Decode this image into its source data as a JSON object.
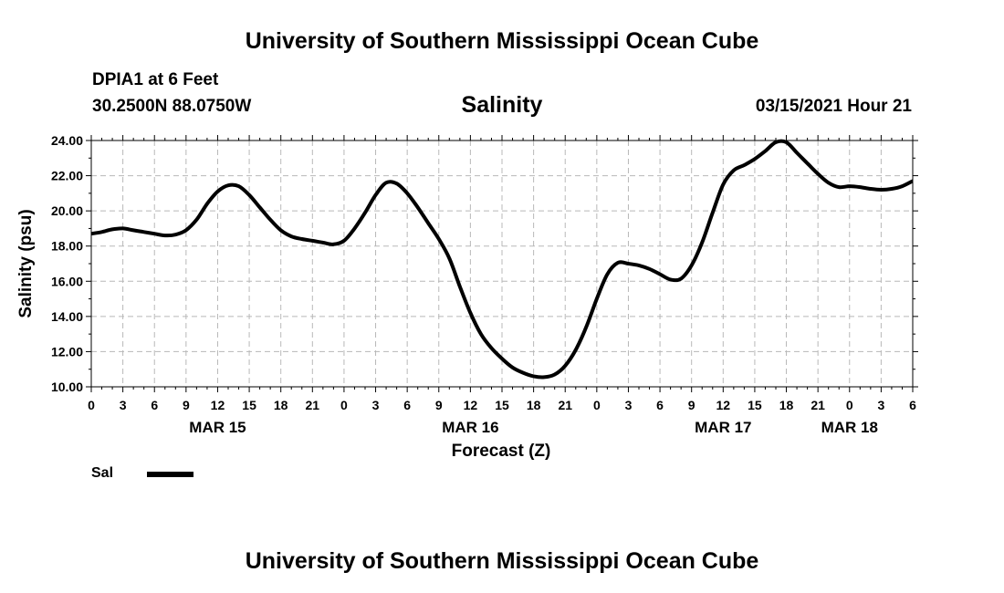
{
  "header": {
    "title": "University of Southern Mississippi Ocean Cube",
    "station": "DPIA1 at 6 Feet",
    "coordinates": "30.2500N 88.0750W",
    "timestamp": "03/15/2021 Hour 21"
  },
  "footer": {
    "title": "University of Southern Mississippi Ocean Cube"
  },
  "legend": {
    "label": "Sal"
  },
  "chart_data": {
    "type": "line",
    "title": "Salinity",
    "xlabel": "Forecast (Z)",
    "ylabel": "Salinity (psu)",
    "ylim": [
      10,
      24
    ],
    "yticks": [
      "10.00",
      "12.00",
      "14.00",
      "16.00",
      "18.00",
      "20.00",
      "22.00",
      "24.00"
    ],
    "xlim_hours": [
      0,
      78
    ],
    "xtick_labels": [
      "0",
      "3",
      "6",
      "9",
      "12",
      "15",
      "18",
      "21",
      "0",
      "3",
      "6",
      "9",
      "12",
      "15",
      "18",
      "21",
      "0",
      "3",
      "6",
      "9",
      "12",
      "15",
      "18",
      "21",
      "0",
      "3",
      "6"
    ],
    "date_labels": [
      {
        "label": "MAR 15",
        "hour": 12
      },
      {
        "label": "MAR 16",
        "hour": 36
      },
      {
        "label": "MAR 17",
        "hour": 60
      },
      {
        "label": "MAR 18",
        "hour": 72
      }
    ],
    "grid": true,
    "series": [
      {
        "name": "Sal",
        "color": "#000000",
        "x": [
          0,
          1,
          2,
          3,
          4,
          5,
          6,
          7,
          8,
          9,
          10,
          11,
          12,
          13,
          14,
          15,
          16,
          17,
          18,
          19,
          20,
          21,
          22,
          23,
          24,
          25,
          26,
          27,
          28,
          29,
          30,
          31,
          32,
          33,
          34,
          35,
          36,
          37,
          38,
          39,
          40,
          41,
          42,
          43,
          44,
          45,
          46,
          47,
          48,
          49,
          50,
          51,
          52,
          53,
          54,
          55,
          56,
          57,
          58,
          59,
          60,
          61,
          62,
          63,
          64,
          65,
          66,
          67,
          68,
          69,
          70,
          71,
          72,
          73,
          74,
          75,
          76,
          77,
          78
        ],
        "values": [
          18.7,
          18.8,
          18.95,
          19.0,
          18.9,
          18.8,
          18.7,
          18.6,
          18.65,
          18.9,
          19.5,
          20.4,
          21.1,
          21.45,
          21.4,
          20.9,
          20.2,
          19.5,
          18.9,
          18.55,
          18.4,
          18.3,
          18.2,
          18.1,
          18.3,
          19.0,
          19.9,
          20.9,
          21.6,
          21.55,
          21.0,
          20.2,
          19.3,
          18.4,
          17.3,
          15.7,
          14.2,
          13.0,
          12.2,
          11.6,
          11.1,
          10.8,
          10.6,
          10.55,
          10.7,
          11.2,
          12.1,
          13.4,
          15.0,
          16.4,
          17.05,
          17.0,
          16.9,
          16.7,
          16.4,
          16.1,
          16.15,
          16.9,
          18.2,
          19.9,
          21.5,
          22.3,
          22.6,
          22.95,
          23.4,
          23.9,
          23.9,
          23.3,
          22.7,
          22.1,
          21.6,
          21.35,
          21.4,
          21.35,
          21.25,
          21.2,
          21.25,
          21.4,
          21.7
        ]
      }
    ]
  }
}
